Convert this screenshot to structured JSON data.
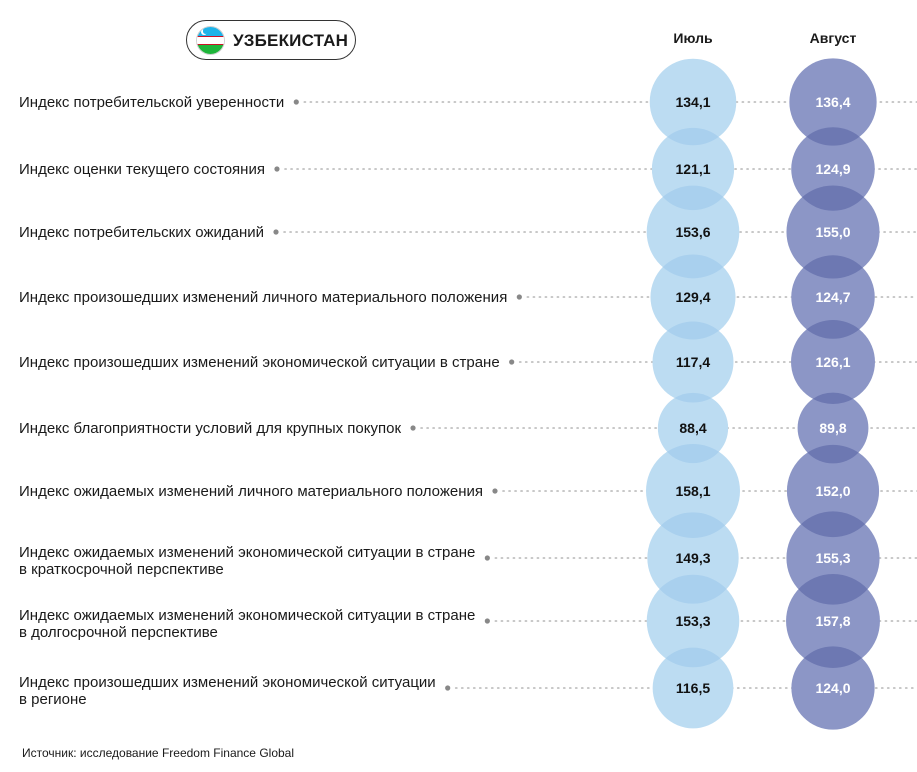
{
  "header": {
    "country": "УЗБЕКИСТАН",
    "flag_icon": "uzbekistan-flag-icon"
  },
  "source": "Источник: исследование Freedom Finance Global",
  "colors": {
    "july_bubble": "#bcdcf2",
    "july_overlap": "#a9d0ee",
    "august_bubble": "#8c96c6",
    "august_overlap": "#6d78b2",
    "july_text": "#111111",
    "august_text": "#ffffff",
    "dots": "#b5b5b5",
    "marker": "#888888"
  },
  "chart_data": {
    "type": "bubble",
    "title": "",
    "series": [
      {
        "name": "Июль",
        "values": [
          134.1,
          121.1,
          153.6,
          129.4,
          117.4,
          88.4,
          158.1,
          149.3,
          153.3,
          116.5
        ],
        "labels": [
          "134,1",
          "121,1",
          "153,6",
          "129,4",
          "117,4",
          "88,4",
          "158,1",
          "149,3",
          "153,3",
          "116,5"
        ]
      },
      {
        "name": "Август",
        "values": [
          136.4,
          124.9,
          155.0,
          124.7,
          126.1,
          89.8,
          152.0,
          155.3,
          157.8,
          124.0
        ],
        "labels": [
          "136,4",
          "124,9",
          "155,0",
          "124,7",
          "126,1",
          "89,8",
          "152,0",
          "155,3",
          "157,8",
          "124,0"
        ]
      }
    ],
    "categories": [
      [
        "Индекс потребительской уверенности"
      ],
      [
        "Индекс оценки текущего состояния"
      ],
      [
        "Индекс потребительских ожиданий"
      ],
      [
        "Индекс произошедших изменений личного материального положения"
      ],
      [
        "Индекс произошедших изменений экономической ситуации в стране"
      ],
      [
        "Индекс благоприятности условий для крупных покупок"
      ],
      [
        "Индекс ожидаемых изменений личного материального положения"
      ],
      [
        "Индекс ожидаемых изменений экономической ситуации в стране",
        "в краткосрочной перспективе"
      ],
      [
        "Индекс ожидаемых изменений экономической ситуации в стране",
        "в долгосрочной перспективе"
      ],
      [
        "Индекс произошедших изменений экономической ситуации",
        "в регионе"
      ]
    ]
  }
}
